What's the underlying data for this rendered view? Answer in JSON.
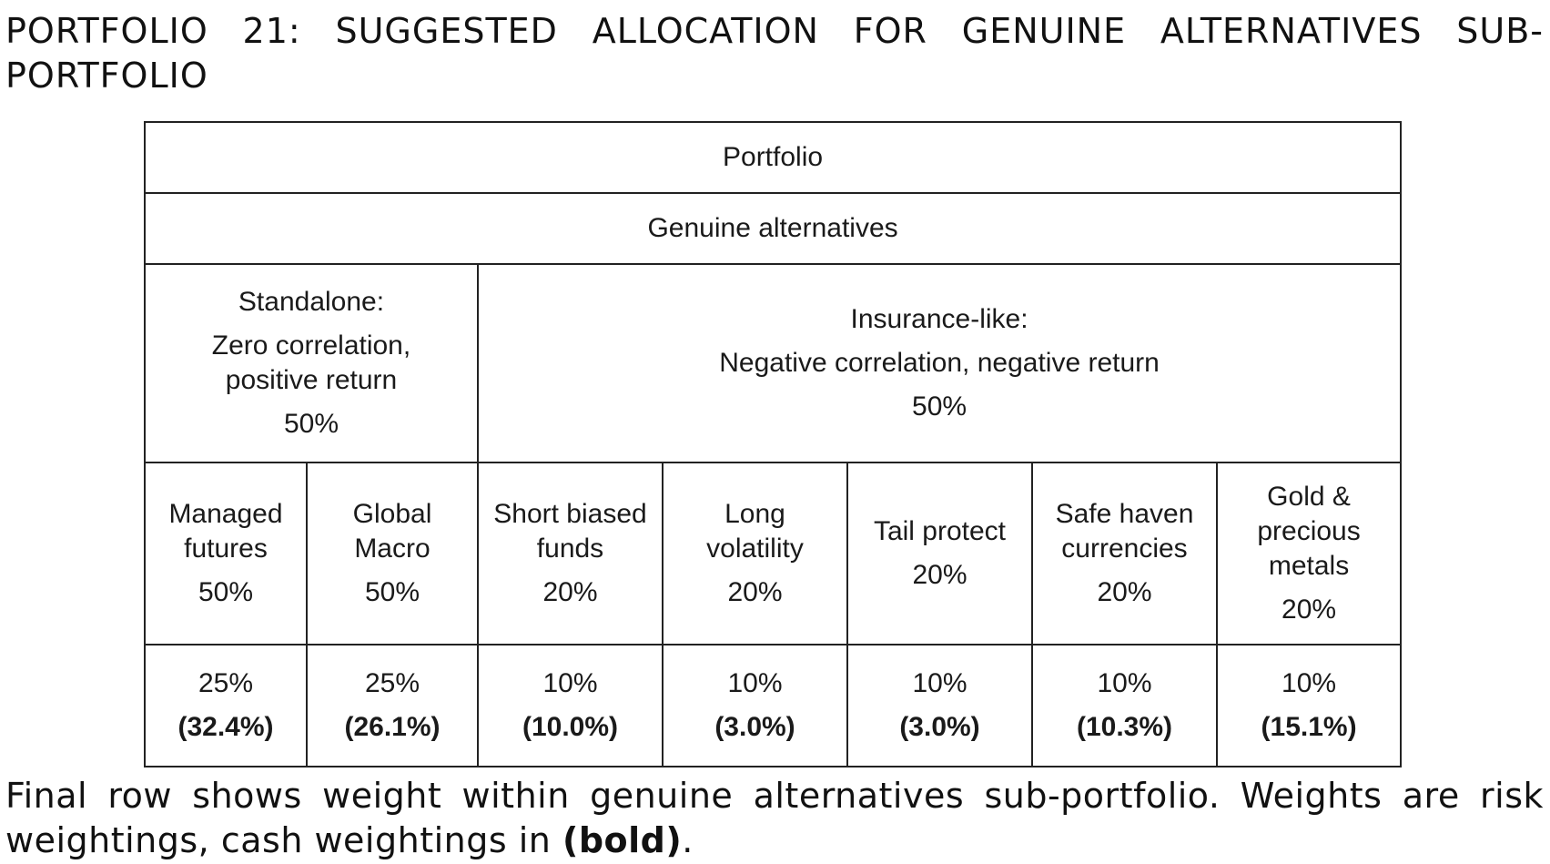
{
  "title": "PORTFOLIO 21: SUGGESTED ALLOCATION FOR GENUINE ALTERNATIVES SUB-PORTFOLIO",
  "table": {
    "portfolio_label": "Portfolio",
    "genuine_label": "Genuine alternatives",
    "standalone": {
      "heading": "Standalone:",
      "desc_line1": "Zero correlation,",
      "desc_line2": "positive return",
      "pct": "50%"
    },
    "insurance": {
      "heading": "Insurance-like:",
      "desc": "Negative correlation, negative return",
      "pct": "50%"
    },
    "columns": [
      {
        "name_line1": "Managed",
        "name_line2": "futures",
        "name_line3": "",
        "pct": "50%",
        "risk": "25%",
        "cash": "(32.4%)"
      },
      {
        "name_line1": "Global",
        "name_line2": "Macro",
        "name_line3": "",
        "pct": "50%",
        "risk": "25%",
        "cash": "(26.1%)"
      },
      {
        "name_line1": "Short biased",
        "name_line2": "funds",
        "name_line3": "",
        "pct": "20%",
        "risk": "10%",
        "cash": "(10.0%)"
      },
      {
        "name_line1": "Long",
        "name_line2": "volatility",
        "name_line3": "",
        "pct": "20%",
        "risk": "10%",
        "cash": "(3.0%)"
      },
      {
        "name_line1": "Tail protect",
        "name_line2": "",
        "name_line3": "",
        "pct": "20%",
        "risk": "10%",
        "cash": "(3.0%)"
      },
      {
        "name_line1": "Safe haven",
        "name_line2": "currencies",
        "name_line3": "",
        "pct": "20%",
        "risk": "10%",
        "cash": "(10.3%)"
      },
      {
        "name_line1": "Gold &",
        "name_line2": "precious",
        "name_line3": "metals",
        "pct": "20%",
        "risk": "10%",
        "cash": "(15.1%)"
      }
    ]
  },
  "caption": {
    "text": "Final row shows weight within genuine alternatives sub-portfolio. Weights are risk weightings, cash weightings in",
    "bold": "(bold)",
    "end": "."
  }
}
